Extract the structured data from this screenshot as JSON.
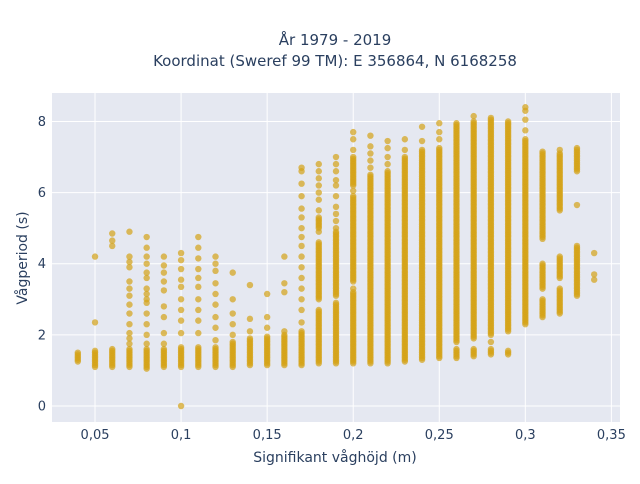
{
  "chart_data": {
    "type": "scatter",
    "title": "År 1979 - 2019",
    "subtitle": "Koordinat (Sweref 99 TM): E 356864, N 6168258",
    "xlabel": "Signifikant våghöjd (m)",
    "ylabel": "Vågperiod (s)",
    "xlim": [
      0.025,
      0.355
    ],
    "ylim": [
      -0.45,
      8.8
    ],
    "x_ticks": [
      0.05,
      0.1,
      0.15,
      0.2,
      0.25,
      0.3,
      0.35
    ],
    "x_tick_labels": [
      "0,05",
      "0,1",
      "0,15",
      "0,2",
      "0,25",
      "0,3",
      "0,35"
    ],
    "y_ticks": [
      0,
      2,
      4,
      6,
      8
    ],
    "y_tick_labels": [
      "0",
      "2",
      "4",
      "6",
      "8"
    ],
    "grid": true,
    "marker_color": "#d4a317",
    "plot_background": "#e5e8f1",
    "columns": [
      {
        "x": 0.04,
        "ranges": [
          [
            1.25,
            1.5
          ]
        ],
        "points": []
      },
      {
        "x": 0.05,
        "ranges": [
          [
            1.1,
            1.55
          ]
        ],
        "points": [
          2.35,
          4.2
        ]
      },
      {
        "x": 0.06,
        "ranges": [
          [
            1.1,
            1.6
          ]
        ],
        "points": [
          4.5,
          4.65,
          4.85
        ]
      },
      {
        "x": 0.07,
        "ranges": [
          [
            1.1,
            1.6
          ]
        ],
        "points": [
          1.75,
          1.9,
          2.05,
          2.3,
          2.6,
          2.85,
          3.1,
          3.3,
          3.5,
          3.9,
          4.05,
          4.2,
          4.9
        ]
      },
      {
        "x": 0.08,
        "ranges": [
          [
            1.05,
            1.6
          ]
        ],
        "points": [
          1.75,
          2.0,
          2.3,
          2.6,
          2.9,
          3.0,
          3.15,
          3.3,
          3.6,
          3.75,
          4.0,
          4.2,
          4.45,
          4.75
        ]
      },
      {
        "x": 0.09,
        "ranges": [
          [
            1.1,
            1.6
          ]
        ],
        "points": [
          1.75,
          2.05,
          2.5,
          2.8,
          3.25,
          3.5,
          3.75,
          3.95,
          4.2
        ]
      },
      {
        "x": 0.1,
        "ranges": [
          [
            1.1,
            1.65
          ]
        ],
        "points": [
          0.0,
          2.05,
          2.4,
          2.7,
          3.0,
          3.35,
          3.55,
          3.85,
          4.1,
          4.3
        ]
      },
      {
        "x": 0.11,
        "ranges": [
          [
            1.1,
            1.65
          ]
        ],
        "points": [
          2.05,
          2.4,
          2.7,
          3.0,
          3.35,
          3.6,
          3.85,
          4.15,
          4.45,
          4.75
        ]
      },
      {
        "x": 0.12,
        "ranges": [
          [
            1.1,
            1.65
          ]
        ],
        "points": [
          1.85,
          2.2,
          2.5,
          2.85,
          3.15,
          3.45,
          3.8,
          4.0,
          4.2
        ]
      },
      {
        "x": 0.13,
        "ranges": [
          [
            1.1,
            1.8
          ]
        ],
        "points": [
          2.0,
          2.3,
          2.6,
          3.0,
          3.75
        ]
      },
      {
        "x": 0.14,
        "ranges": [
          [
            1.15,
            1.9
          ]
        ],
        "points": [
          2.1,
          2.45,
          3.4
        ]
      },
      {
        "x": 0.15,
        "ranges": [
          [
            1.15,
            1.95
          ]
        ],
        "points": [
          2.2,
          2.5,
          3.15
        ]
      },
      {
        "x": 0.16,
        "ranges": [
          [
            1.15,
            2.0
          ]
        ],
        "points": [
          2.1,
          3.2,
          3.45,
          4.2
        ]
      },
      {
        "x": 0.17,
        "ranges": [
          [
            1.15,
            2.1
          ]
        ],
        "points": [
          2.35,
          2.7,
          3.0,
          3.3,
          3.6,
          3.9,
          4.2,
          4.5,
          4.75,
          5.0,
          5.3,
          5.55,
          5.9,
          6.25,
          6.6,
          6.7
        ]
      },
      {
        "x": 0.18,
        "ranges": [
          [
            1.2,
            2.7
          ],
          [
            3.0,
            4.6
          ],
          [
            5.0,
            5.3
          ]
        ],
        "points": [
          4.9,
          5.5,
          5.8,
          6.0,
          6.2,
          6.4,
          6.6,
          6.8
        ]
      },
      {
        "x": 0.19,
        "ranges": [
          [
            1.2,
            2.9
          ],
          [
            3.1,
            4.9
          ]
        ],
        "points": [
          5.0,
          5.2,
          5.4,
          5.6,
          5.9,
          6.2,
          6.35,
          6.6,
          6.8,
          7.0
        ]
      },
      {
        "x": 0.2,
        "ranges": [
          [
            1.2,
            3.2
          ],
          [
            3.5,
            5.9
          ],
          [
            6.2,
            7.0
          ]
        ],
        "points": [
          3.3,
          6.05,
          7.2,
          7.5,
          7.7
        ]
      },
      {
        "x": 0.21,
        "ranges": [
          [
            1.2,
            6.5
          ]
        ],
        "points": [
          6.7,
          6.9,
          7.1,
          7.3,
          7.6
        ]
      },
      {
        "x": 0.22,
        "ranges": [
          [
            1.2,
            6.6
          ]
        ],
        "points": [
          6.8,
          7.0,
          7.25,
          7.45
        ]
      },
      {
        "x": 0.23,
        "ranges": [
          [
            1.25,
            7.0
          ]
        ],
        "points": [
          7.2,
          7.5
        ]
      },
      {
        "x": 0.24,
        "ranges": [
          [
            1.3,
            7.2
          ]
        ],
        "points": [
          7.45,
          7.85
        ]
      },
      {
        "x": 0.25,
        "ranges": [
          [
            1.35,
            7.25
          ]
        ],
        "points": [
          7.5,
          7.7,
          7.95
        ]
      },
      {
        "x": 0.26,
        "ranges": [
          [
            1.35,
            1.6
          ],
          [
            1.8,
            7.95
          ]
        ],
        "points": []
      },
      {
        "x": 0.27,
        "ranges": [
          [
            1.4,
            1.6
          ],
          [
            1.9,
            8.0
          ]
        ],
        "points": [
          8.15
        ]
      },
      {
        "x": 0.28,
        "ranges": [
          [
            1.45,
            1.6
          ],
          [
            2.0,
            8.1
          ]
        ],
        "points": [
          1.8
        ]
      },
      {
        "x": 0.29,
        "ranges": [
          [
            1.45,
            1.55
          ],
          [
            2.1,
            8.0
          ]
        ],
        "points": []
      },
      {
        "x": 0.3,
        "ranges": [
          [
            2.3,
            7.5
          ]
        ],
        "points": [
          7.75,
          8.05,
          8.3,
          8.4
        ]
      },
      {
        "x": 0.31,
        "ranges": [
          [
            2.5,
            3.0
          ],
          [
            3.3,
            4.0
          ],
          [
            4.7,
            7.1
          ]
        ],
        "points": [
          7.15
        ]
      },
      {
        "x": 0.32,
        "ranges": [
          [
            2.6,
            3.3
          ],
          [
            3.6,
            4.2
          ],
          [
            5.5,
            7.1
          ]
        ],
        "points": [
          7.2
        ]
      },
      {
        "x": 0.33,
        "ranges": [
          [
            3.1,
            4.5
          ],
          [
            6.6,
            7.25
          ]
        ],
        "points": [
          5.65
        ]
      },
      {
        "x": 0.34,
        "ranges": [],
        "points": [
          3.55,
          3.7,
          4.3
        ]
      }
    ]
  }
}
